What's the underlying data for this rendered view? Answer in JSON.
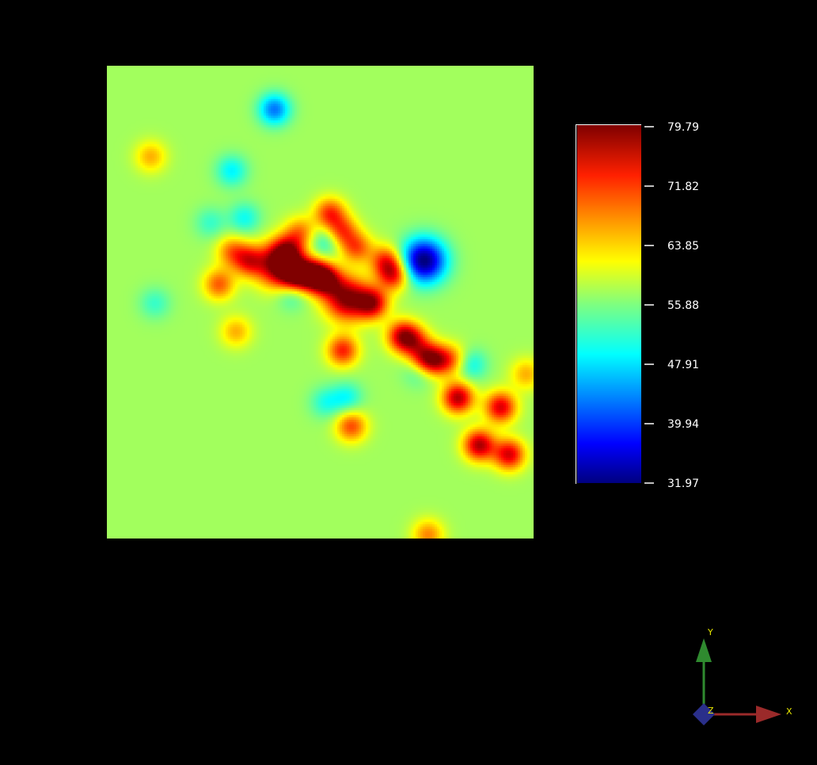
{
  "chart_data": {
    "type": "heatmap",
    "title": "",
    "xlabel": "",
    "ylabel": "",
    "colormap": "jet",
    "background_value": 57.5,
    "color_range": [
      31.97,
      79.79
    ],
    "colorbar": {
      "placement": "right",
      "ticks": [
        "79.79",
        "71.82",
        "63.85",
        "55.88",
        "47.91",
        "39.94",
        "31.97"
      ]
    },
    "hotspots": [
      {
        "x": 0.4,
        "y": 0.42,
        "amp": 22
      },
      {
        "x": 0.48,
        "y": 0.44,
        "amp": 20
      },
      {
        "x": 0.56,
        "y": 0.49,
        "amp": 22
      },
      {
        "x": 0.62,
        "y": 0.5,
        "amp": 18
      },
      {
        "x": 0.44,
        "y": 0.44,
        "amp": 19
      },
      {
        "x": 0.51,
        "y": 0.45,
        "amp": 18
      },
      {
        "x": 0.58,
        "y": 0.38,
        "amp": 16
      },
      {
        "x": 0.67,
        "y": 0.44,
        "amp": 16
      },
      {
        "x": 0.69,
        "y": 0.57,
        "amp": 18
      },
      {
        "x": 0.74,
        "y": 0.62,
        "amp": 16
      },
      {
        "x": 0.82,
        "y": 0.7,
        "amp": 20
      },
      {
        "x": 0.87,
        "y": 0.8,
        "amp": 20
      },
      {
        "x": 0.92,
        "y": 0.72,
        "amp": 18
      },
      {
        "x": 0.94,
        "y": 0.82,
        "amp": 18
      },
      {
        "x": 0.77,
        "y": 0.62,
        "amp": 14
      },
      {
        "x": 0.55,
        "y": 0.6,
        "amp": 15
      },
      {
        "x": 0.33,
        "y": 0.41,
        "amp": 14
      },
      {
        "x": 0.26,
        "y": 0.46,
        "amp": 12
      },
      {
        "x": 0.52,
        "y": 0.31,
        "amp": 14
      },
      {
        "x": 0.55,
        "y": 0.35,
        "amp": 14
      },
      {
        "x": 0.65,
        "y": 0.41,
        "amp": 13
      },
      {
        "x": 0.42,
        "y": 0.39,
        "amp": 14
      },
      {
        "x": 0.57,
        "y": 0.76,
        "amp": 13
      },
      {
        "x": 0.75,
        "y": 0.99,
        "amp": 10
      },
      {
        "x": 0.1,
        "y": 0.19,
        "amp": 8
      },
      {
        "x": 0.29,
        "y": 0.39,
        "amp": 10
      },
      {
        "x": 0.3,
        "y": 0.56,
        "amp": 8
      },
      {
        "x": 0.98,
        "y": 0.65,
        "amp": 8
      },
      {
        "x": 0.72,
        "y": 0.58,
        "amp": 10
      },
      {
        "x": 0.81,
        "y": 0.62,
        "amp": 9
      },
      {
        "x": 0.45,
        "y": 0.35,
        "amp": 10
      }
    ],
    "coldspots": [
      {
        "x": 0.74,
        "y": 0.41,
        "amp": 26
      },
      {
        "x": 0.39,
        "y": 0.09,
        "amp": 14
      },
      {
        "x": 0.29,
        "y": 0.22,
        "amp": 8
      },
      {
        "x": 0.32,
        "y": 0.32,
        "amp": 7
      },
      {
        "x": 0.43,
        "y": 0.48,
        "amp": 6
      },
      {
        "x": 0.57,
        "y": 0.37,
        "amp": 6
      },
      {
        "x": 0.51,
        "y": 0.37,
        "amp": 7
      },
      {
        "x": 0.73,
        "y": 0.64,
        "amp": 8
      },
      {
        "x": 0.85,
        "y": 0.63,
        "amp": 8
      },
      {
        "x": 0.56,
        "y": 0.7,
        "amp": 7
      },
      {
        "x": 0.51,
        "y": 0.71,
        "amp": 6
      },
      {
        "x": 0.11,
        "y": 0.5,
        "amp": 5
      },
      {
        "x": 0.24,
        "y": 0.33,
        "amp": 5
      }
    ]
  },
  "orientation_axes": {
    "x_label": "X",
    "y_label": "Y",
    "z_label": "Z",
    "colors": {
      "x": "#9b2a2a",
      "y": "#2f8a2f",
      "z": "#2a2f8a"
    }
  }
}
